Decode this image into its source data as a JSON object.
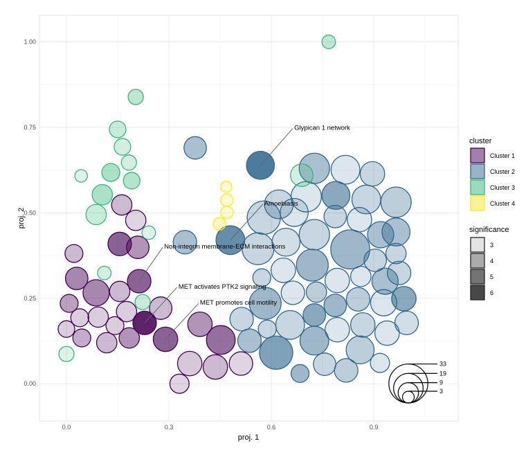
{
  "chart_data": {
    "type": "scatter",
    "title": "",
    "xlabel": "proj. 1",
    "ylabel": "proj. 2",
    "xlim": [
      -0.079,
      1.147
    ],
    "ylim": [
      -0.109,
      1.078
    ],
    "xticks": [
      0.0,
      0.3,
      0.6,
      0.9
    ],
    "xtick_labels": [
      "0.0",
      "0.3",
      "0.6",
      "0.9"
    ],
    "yticks": [
      0.0,
      0.25,
      0.5,
      0.75,
      1.0
    ],
    "ytick_labels": [
      "0.00",
      "0.25",
      "0.50",
      "0.75",
      "1.00"
    ],
    "grid": true,
    "point_fields": [
      "x",
      "y",
      "size",
      "significance"
    ],
    "series": [
      {
        "name": "Cluster 1",
        "color": "#440154",
        "points": [
          [
            0.162,
            0.523,
            9,
            3.6
          ],
          [
            0.203,
            0.478,
            9,
            3.2
          ],
          [
            0.209,
            0.399,
            11,
            4.2
          ],
          [
            0.156,
            0.409,
            12,
            5
          ],
          [
            0.022,
            0.381,
            7,
            3.6
          ],
          [
            0.03,
            0.308,
            11,
            4.4
          ],
          [
            0.087,
            0.266,
            15,
            4.4
          ],
          [
            0.156,
            0.27,
            9,
            3.6
          ],
          [
            0.213,
            0.3,
            12,
            5
          ],
          [
            0.008,
            0.235,
            7,
            4
          ],
          [
            0.039,
            0.193,
            7,
            3.3
          ],
          [
            0.093,
            0.195,
            9,
            3.3
          ],
          [
            0.176,
            0.211,
            9,
            3.3
          ],
          [
            0.142,
            0.17,
            7,
            3.3
          ],
          [
            0.0,
            0.16,
            6,
            3.3
          ],
          [
            0.045,
            0.134,
            7,
            3.8
          ],
          [
            0.118,
            0.12,
            9,
            3.6
          ],
          [
            0.184,
            0.134,
            9,
            4.2
          ],
          [
            0.276,
            0.221,
            11,
            3.6
          ],
          [
            0.229,
            0.178,
            12,
            6
          ],
          [
            0.29,
            0.13,
            13,
            5
          ],
          [
            0.391,
            0.174,
            13,
            4.2
          ],
          [
            0.452,
            0.128,
            18,
            4.8
          ],
          [
            0.361,
            0.059,
            13,
            3.4
          ],
          [
            0.436,
            0.049,
            13,
            3.6
          ],
          [
            0.511,
            0.059,
            12,
            3.2
          ],
          [
            0.331,
            0.0,
            8,
            3.2
          ]
        ]
      },
      {
        "name": "Cluster 2",
        "color": "#31688e",
        "points": [
          [
            0.568,
            0.639,
            17,
            6
          ],
          [
            0.377,
            0.69,
            11,
            4.2
          ],
          [
            0.347,
            0.414,
            12,
            4.2
          ],
          [
            0.48,
            0.42,
            18,
            5.5
          ],
          [
            0.622,
            0.525,
            18,
            3.6
          ],
          [
            0.726,
            0.63,
            20,
            4.2
          ],
          [
            0.817,
            0.626,
            18,
            3.2
          ],
          [
            0.896,
            0.614,
            13,
            3.6
          ],
          [
            0.702,
            0.547,
            20,
            3.2
          ],
          [
            0.789,
            0.551,
            17,
            4.8
          ],
          [
            0.878,
            0.539,
            18,
            3.6
          ],
          [
            0.965,
            0.531,
            20,
            3.8
          ],
          [
            0.578,
            0.486,
            24,
            3.6
          ],
          [
            0.667,
            0.501,
            17,
            3.2
          ],
          [
            0.787,
            0.489,
            11,
            3.6
          ],
          [
            0.858,
            0.48,
            13,
            3.2
          ],
          [
            0.726,
            0.436,
            20,
            3.6
          ],
          [
            0.92,
            0.436,
            15,
            4.2
          ],
          [
            0.965,
            0.444,
            17,
            4.2
          ],
          [
            0.561,
            0.395,
            22,
            3.6
          ],
          [
            0.643,
            0.414,
            17,
            3.4
          ],
          [
            0.831,
            0.393,
            33,
            4.4
          ],
          [
            0.904,
            0.361,
            11,
            3.6
          ],
          [
            0.965,
            0.381,
            9,
            3.6
          ],
          [
            0.72,
            0.347,
            22,
            4.4
          ],
          [
            0.635,
            0.332,
            13,
            3.2
          ],
          [
            0.572,
            0.31,
            7,
            3.6
          ],
          [
            0.974,
            0.324,
            12,
            3.6
          ],
          [
            0.793,
            0.302,
            13,
            3.2
          ],
          [
            0.862,
            0.314,
            9,
            3.2
          ],
          [
            0.933,
            0.3,
            15,
            4.2
          ],
          [
            0.663,
            0.266,
            12,
            3.2
          ],
          [
            0.732,
            0.268,
            9,
            3.8
          ],
          [
            0.582,
            0.235,
            22,
            4.4
          ],
          [
            0.787,
            0.229,
            11,
            4.4
          ],
          [
            0.854,
            0.247,
            12,
            3.8
          ],
          [
            0.929,
            0.237,
            15,
            3.2
          ],
          [
            0.988,
            0.249,
            13,
            4.8
          ],
          [
            0.726,
            0.201,
            11,
            4.8
          ],
          [
            0.655,
            0.172,
            18,
            3.6
          ],
          [
            0.513,
            0.189,
            12,
            3.6
          ],
          [
            0.588,
            0.16,
            7,
            3.6
          ],
          [
            0.868,
            0.172,
            13,
            3.6
          ],
          [
            0.793,
            0.158,
            13,
            3.2
          ],
          [
            0.939,
            0.148,
            13,
            3.2
          ],
          [
            0.996,
            0.178,
            12,
            3.4
          ],
          [
            0.726,
            0.126,
            18,
            4.4
          ],
          [
            0.536,
            0.126,
            12,
            4.2
          ],
          [
            0.614,
            0.091,
            24,
            5
          ],
          [
            0.86,
            0.099,
            17,
            3.8
          ],
          [
            0.756,
            0.057,
            11,
            3.6
          ],
          [
            0.819,
            0.039,
            12,
            3.8
          ],
          [
            0.918,
            0.061,
            8,
            3.2
          ],
          [
            0.684,
            0.03,
            7,
            4.4
          ]
        ]
      },
      {
        "name": "Cluster 3",
        "color": "#35b779",
        "points": [
          [
            0.768,
            1.0,
            4,
            3.8
          ],
          [
            0.203,
            0.839,
            5,
            3.8
          ],
          [
            0.15,
            0.744,
            6,
            3.6
          ],
          [
            0.164,
            0.693,
            6,
            3.4
          ],
          [
            0.183,
            0.647,
            5,
            3.4
          ],
          [
            0.043,
            0.608,
            3.4,
            3.2
          ],
          [
            0.13,
            0.618,
            7,
            4.2
          ],
          [
            0.191,
            0.594,
            6,
            4
          ],
          [
            0.105,
            0.553,
            9,
            4.2
          ],
          [
            0.087,
            0.495,
            9,
            3.6
          ],
          [
            0.241,
            0.442,
            4,
            3.2
          ],
          [
            0.111,
            0.324,
            4,
            3.4
          ],
          [
            0.223,
            0.239,
            5,
            3.6
          ],
          [
            0.0,
            0.087,
            5,
            3.2
          ],
          [
            0.689,
            0.61,
            11,
            3.4
          ]
        ]
      },
      {
        "name": "Cluster 4",
        "color": "#fde725",
        "points": [
          [
            0.468,
            0.576,
            2.7,
            3.4
          ],
          [
            0.47,
            0.537,
            3.4,
            3.4
          ],
          [
            0.47,
            0.501,
            3.4,
            3.4
          ],
          [
            0.448,
            0.468,
            3.4,
            3.6
          ]
        ]
      }
    ],
    "annotations": [
      {
        "text": "Glypican 1 network",
        "target": [
          0.568,
          0.639
        ],
        "text_at": [
          0.667,
          0.749
        ]
      },
      {
        "text": "Amoebiasis",
        "target": [
          0.48,
          0.42
        ],
        "text_at": [
          0.579,
          0.527
        ]
      },
      {
        "text": "Non-integrin membrane-ECM interactions",
        "target": [
          0.213,
          0.3
        ],
        "text_at": [
          0.286,
          0.401
        ]
      },
      {
        "text": "MET activates PTK2 signaling",
        "target": [
          0.229,
          0.178
        ],
        "text_at": [
          0.328,
          0.284
        ]
      },
      {
        "text": "MET promotes cell motility",
        "target": [
          0.29,
          0.13
        ],
        "text_at": [
          0.391,
          0.237
        ]
      }
    ],
    "legend": {
      "placement": "right",
      "cluster_title": "cluster",
      "cluster_labels": [
        "Cluster 1",
        "Cluster 2",
        "Cluster 3",
        "Cluster 4"
      ],
      "significance_title": "significance",
      "significance_levels": [
        "3",
        "4",
        "5",
        "6"
      ],
      "size_levels": [
        "33",
        "19",
        "9",
        "3"
      ]
    }
  }
}
